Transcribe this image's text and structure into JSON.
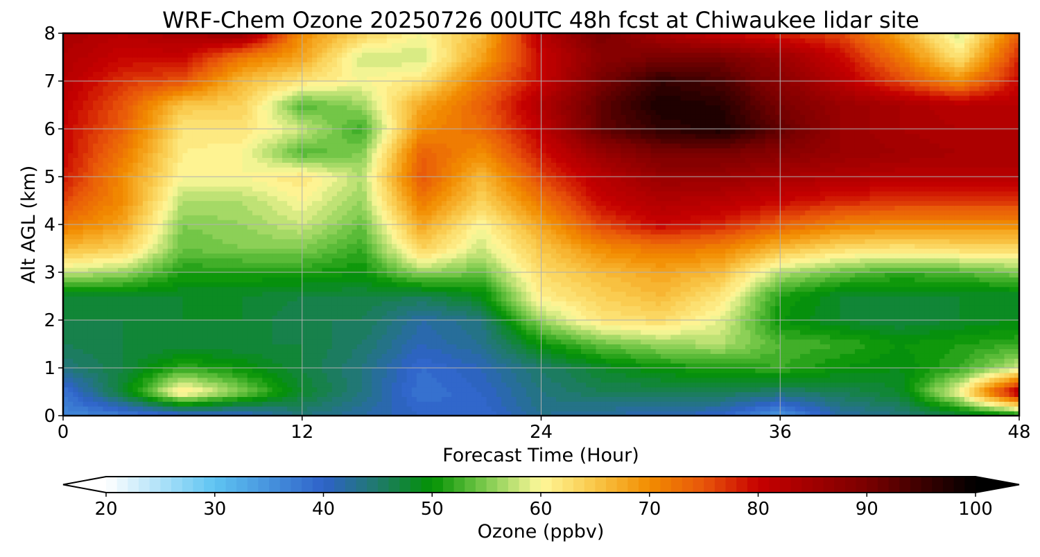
{
  "chart_data": {
    "type": "heatmap",
    "title": "WRF-Chem Ozone  20250726 00UTC 48h fcst at Chiwaukee lidar site",
    "xlabel": "Forecast Time (Hour)",
    "ylabel": "Alt AGL (km)",
    "xlim": [
      0,
      48
    ],
    "ylim": [
      0,
      8
    ],
    "x_ticks": [
      "0",
      "12",
      "24",
      "36",
      "48"
    ],
    "y_ticks": [
      "0",
      "1",
      "2",
      "3",
      "4",
      "5",
      "6",
      "7",
      "8"
    ],
    "grid": true,
    "colorbar": {
      "label": "Ozone  (ppbv)",
      "min": 20,
      "max": 100,
      "extend": "both",
      "ticks": [
        "20",
        "30",
        "40",
        "50",
        "60",
        "70",
        "80",
        "90",
        "100"
      ]
    },
    "x_hours": [
      0,
      3,
      6,
      9,
      12,
      15,
      18,
      21,
      24,
      27,
      30,
      33,
      36,
      39,
      42,
      45,
      48
    ],
    "z_km": [
      0,
      0.5,
      1,
      1.5,
      2,
      2.5,
      3,
      3.5,
      4,
      4.5,
      5,
      5.5,
      6,
      6.5,
      7,
      7.5,
      8
    ],
    "ozone_ppbv": [
      [
        36,
        37,
        39,
        40,
        44,
        42,
        40,
        39,
        43,
        42,
        41,
        40,
        34,
        42,
        44,
        47,
        49
      ],
      [
        38,
        48,
        62,
        55,
        48,
        44,
        38,
        40,
        44,
        46,
        46,
        46,
        45,
        46,
        48,
        60,
        84
      ],
      [
        44,
        47,
        52,
        50,
        47,
        44,
        39,
        41,
        45,
        48,
        50,
        51,
        52,
        50,
        49,
        52,
        58
      ],
      [
        46,
        47,
        47,
        47,
        47,
        45,
        41,
        43,
        50,
        54,
        56,
        57,
        53,
        52,
        50,
        51,
        52
      ],
      [
        47,
        47,
        48,
        48,
        46,
        46,
        42,
        44,
        56,
        62,
        63,
        59,
        50,
        48,
        47,
        48,
        49
      ],
      [
        47,
        48,
        48,
        48,
        47,
        47,
        46,
        49,
        61,
        64,
        66,
        62,
        51,
        48,
        48,
        48,
        48
      ],
      [
        58,
        56,
        51,
        51,
        51,
        50,
        56,
        54,
        63,
        66,
        68,
        66,
        57,
        54,
        52,
        53,
        55
      ],
      [
        66,
        64,
        54,
        55,
        55,
        52,
        64,
        58,
        65,
        70,
        72,
        71,
        66,
        63,
        62,
        63,
        63
      ],
      [
        72,
        68,
        55,
        56,
        58,
        54,
        68,
        60,
        68,
        76,
        80,
        78,
        74,
        71,
        70,
        70,
        70
      ],
      [
        76,
        70,
        57,
        57,
        60,
        56,
        72,
        64,
        72,
        80,
        83,
        82,
        80,
        78,
        77,
        77,
        77
      ],
      [
        79,
        70,
        60,
        60,
        62,
        57,
        75,
        66,
        76,
        82,
        86,
        86,
        84,
        83,
        82,
        82,
        82
      ],
      [
        80,
        72,
        61,
        60,
        53,
        55,
        74,
        70,
        79,
        86,
        90,
        90,
        88,
        86,
        85,
        84,
        84
      ],
      [
        80,
        74,
        62,
        62,
        58,
        52,
        70,
        73,
        81,
        92,
        96,
        98,
        92,
        86,
        84,
        83,
        83
      ],
      [
        81,
        75,
        65,
        64,
        53,
        56,
        68,
        74,
        83,
        92,
        98,
        97,
        90,
        86,
        84,
        82,
        82
      ],
      [
        82,
        77,
        75,
        66,
        62,
        60,
        62,
        72,
        80,
        90,
        96,
        94,
        88,
        82,
        76,
        70,
        80
      ],
      [
        83,
        80,
        80,
        72,
        68,
        58,
        58,
        68,
        80,
        88,
        90,
        90,
        86,
        80,
        72,
        62,
        78
      ],
      [
        84,
        82,
        84,
        86,
        70,
        64,
        60,
        66,
        82,
        90,
        84,
        80,
        78,
        76,
        68,
        58,
        74
      ]
    ]
  }
}
